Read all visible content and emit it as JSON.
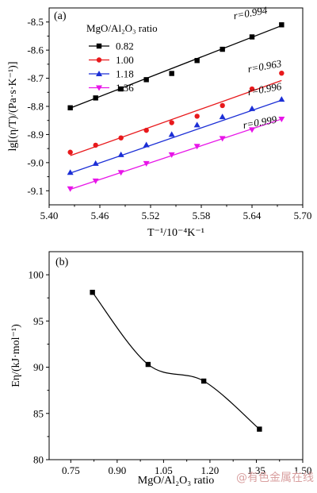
{
  "watermark": "@有色金属在线",
  "chart_data": [
    {
      "type": "scatter",
      "panel_label": "(a)",
      "xlabel": "T⁻¹/10⁻⁴K⁻¹",
      "ylabel": "lg[(η/T)/(Pa·s·K⁻¹)]",
      "xlim": [
        5.4,
        5.7
      ],
      "ylim": [
        -9.15,
        -8.45
      ],
      "xticks": [
        5.4,
        5.46,
        5.52,
        5.58,
        5.64,
        5.7
      ],
      "xtick_labels": [
        "5.40",
        "5.46",
        "5.52",
        "5.58",
        "5.64",
        "5.70"
      ],
      "yticks": [
        -8.5,
        -8.6,
        -8.7,
        -8.8,
        -8.9,
        -9.0,
        -9.1
      ],
      "ytick_labels": [
        "-8.5",
        "-8.6",
        "-8.7",
        "-8.8",
        "-8.9",
        "-9.0",
        "-9.1"
      ],
      "legend_title": "MgO/Al₂O₃ ratio",
      "legend_position": "top-left",
      "grid": false,
      "series": [
        {
          "name": "0.82",
          "color": "#000000",
          "marker": "square",
          "x": [
            5.425,
            5.455,
            5.485,
            5.515,
            5.545,
            5.575,
            5.605,
            5.64,
            5.675
          ],
          "y": [
            -8.805,
            -8.77,
            -8.738,
            -8.705,
            -8.683,
            -8.637,
            -8.597,
            -8.553,
            -8.51
          ],
          "fit": [
            [
              5.425,
              -8.806
            ],
            [
              5.675,
              -8.513
            ]
          ],
          "r_label": "r=0.994"
        },
        {
          "name": "1.00",
          "color": "#e8191c",
          "marker": "circle",
          "x": [
            5.425,
            5.455,
            5.485,
            5.515,
            5.545,
            5.575,
            5.605,
            5.64,
            5.675
          ],
          "y": [
            -8.963,
            -8.938,
            -8.912,
            -8.885,
            -8.858,
            -8.835,
            -8.797,
            -8.738,
            -8.682
          ],
          "fit": [
            [
              5.425,
              -8.975
            ],
            [
              5.675,
              -8.708
            ]
          ],
          "r_label": "r=0.963"
        },
        {
          "name": "1.18",
          "color": "#1c2fd6",
          "marker": "triangle-up",
          "x": [
            5.425,
            5.455,
            5.485,
            5.515,
            5.545,
            5.575,
            5.605,
            5.64,
            5.675
          ],
          "y": [
            -9.035,
            -9.003,
            -8.972,
            -8.937,
            -8.9,
            -8.866,
            -8.837,
            -8.808,
            -8.775
          ],
          "fit": [
            [
              5.425,
              -9.037
            ],
            [
              5.675,
              -8.778
            ]
          ],
          "r_label": "r=0.996"
        },
        {
          "name": "1.36",
          "color": "#e815e8",
          "marker": "triangle-down",
          "x": [
            5.425,
            5.455,
            5.485,
            5.515,
            5.545,
            5.575,
            5.605,
            5.64,
            5.675
          ],
          "y": [
            -9.093,
            -9.065,
            -9.035,
            -9.003,
            -8.972,
            -8.942,
            -8.914,
            -8.883,
            -8.845
          ],
          "fit": [
            [
              5.425,
              -9.095
            ],
            [
              5.675,
              -8.845
            ]
          ],
          "r_label": "r=0.999"
        }
      ]
    },
    {
      "type": "scatter",
      "panel_label": "(b)",
      "xlabel": "MgO/Al₂O₃ ratio",
      "ylabel": "Eη/(kJ·mol⁻¹)",
      "xlim": [
        0.68,
        1.5
      ],
      "ylim": [
        80,
        102.5
      ],
      "xticks": [
        0.75,
        0.9,
        1.05,
        1.2,
        1.35,
        1.5
      ],
      "xtick_labels": [
        "0.75",
        "0.90",
        "1.05",
        "1.20",
        "1.35",
        "1.50"
      ],
      "yticks": [
        80,
        85,
        90,
        95,
        100
      ],
      "ytick_labels": [
        "80",
        "85",
        "90",
        "95",
        "100"
      ],
      "grid": false,
      "series": [
        {
          "color": "#000000",
          "marker": "square",
          "smooth_curve": true,
          "x": [
            0.82,
            1.0,
            1.18,
            1.36
          ],
          "y": [
            98.1,
            90.3,
            88.5,
            83.3
          ]
        }
      ]
    }
  ]
}
